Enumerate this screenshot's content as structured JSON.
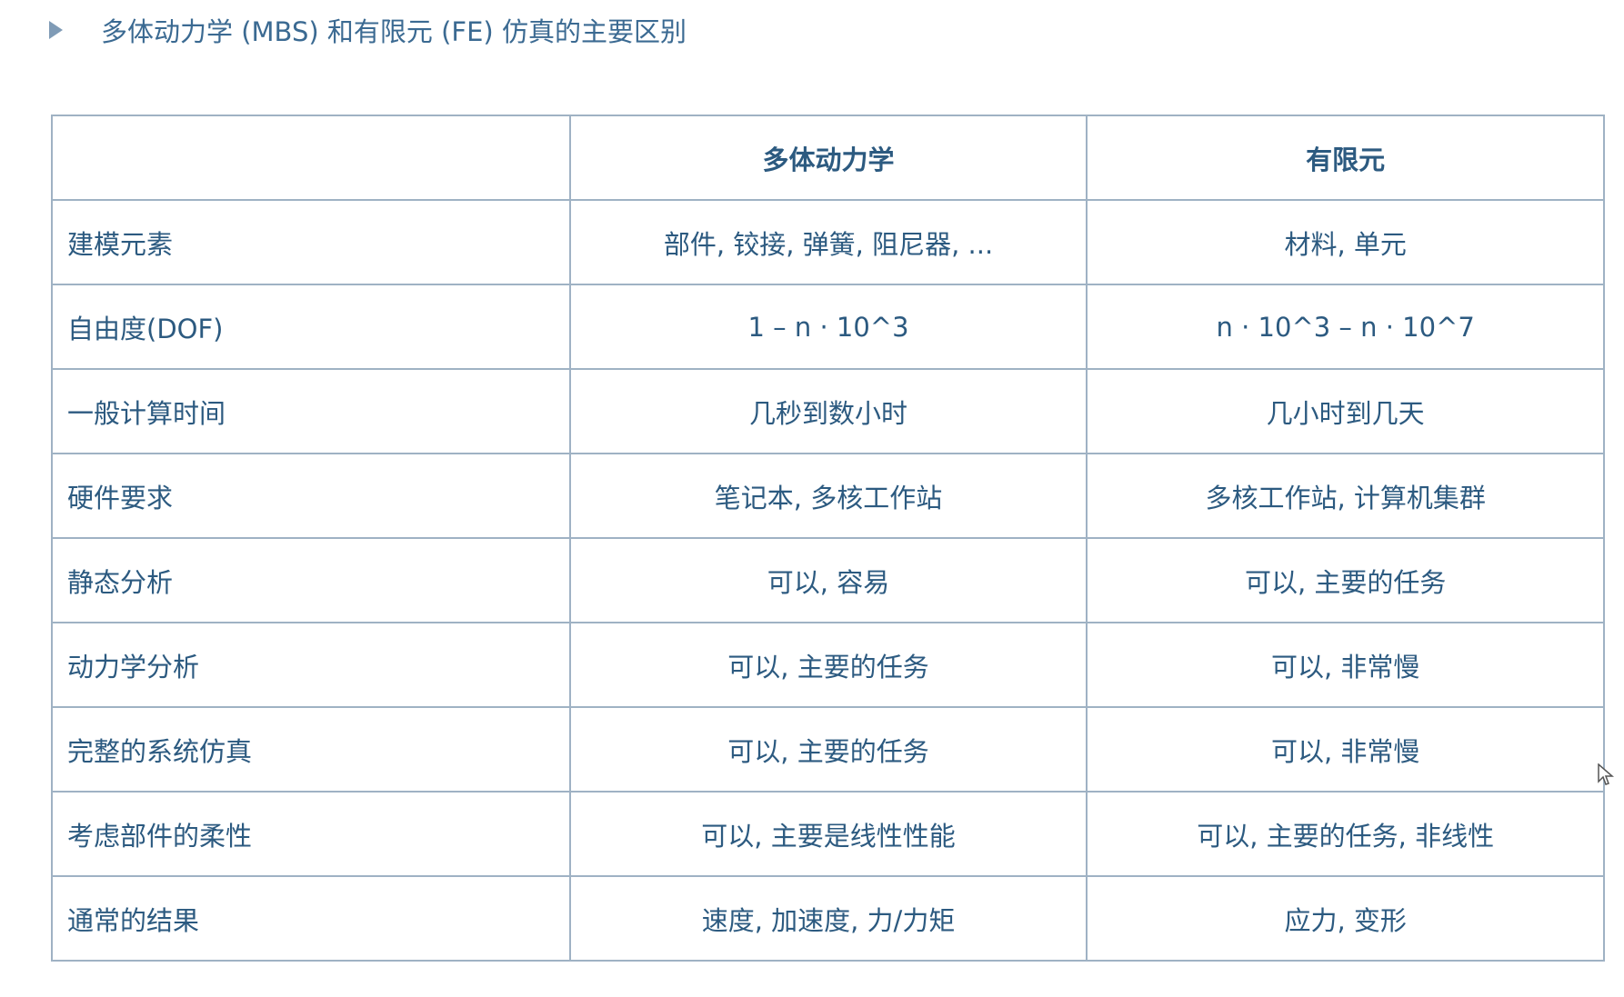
{
  "title": "多体动力学 (MBS) 和有限元 (FE) 仿真的主要区别",
  "table": {
    "headers": [
      "",
      "多体动力学",
      "有限元"
    ],
    "rows": [
      {
        "label": "建模元素",
        "mbs": "部件, 铰接, 弹簧, 阻尼器, ...",
        "fe": "材料, 单元"
      },
      {
        "label": "自由度(DOF)",
        "mbs": "1 – n · 10^3",
        "fe": "n · 10^3 – n · 10^7"
      },
      {
        "label": "一般计算时间",
        "mbs": "几秒到数小时",
        "fe": "几小时到几天"
      },
      {
        "label": "硬件要求",
        "mbs": "笔记本, 多核工作站",
        "fe": "多核工作站, 计算机集群"
      },
      {
        "label": "静态分析",
        "mbs": "可以, 容易",
        "fe": "可以, 主要的任务"
      },
      {
        "label": "动力学分析",
        "mbs": "可以, 主要的任务",
        "fe": "可以, 非常慢"
      },
      {
        "label": "完整的系统仿真",
        "mbs": "可以, 主要的任务",
        "fe": "可以, 非常慢"
      },
      {
        "label": "考虑部件的柔性",
        "mbs": "可以, 主要是线性性能",
        "fe": "可以, 主要的任务, 非线性"
      },
      {
        "label": "通常的结果",
        "mbs": "速度, 加速度, 力/力矩",
        "fe": "应力, 变形"
      }
    ]
  },
  "colors": {
    "text": "#2c5a80",
    "border": "#9fb2c4",
    "bullet": "#7f9bb6"
  }
}
